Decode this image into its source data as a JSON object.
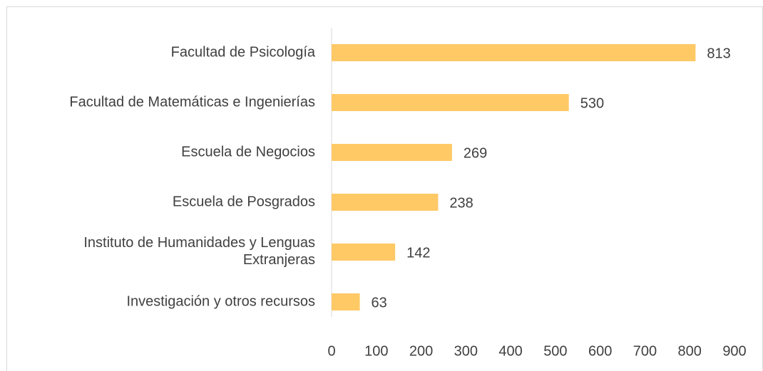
{
  "chart_data": {
    "type": "bar",
    "orientation": "horizontal",
    "categories": [
      "Facultad de Psicología",
      "Facultad de Matemáticas e Ingenierías",
      "Escuela de Negocios",
      "Escuela de Posgrados",
      "Instituto de Humanidades y Lenguas Extranjeras",
      "Investigación y otros recursos"
    ],
    "values": [
      813,
      530,
      269,
      238,
      142,
      63
    ],
    "color": "#ffc966",
    "xlim": [
      0,
      900
    ],
    "xticks": [
      0,
      100,
      200,
      300,
      400,
      500,
      600,
      700,
      800,
      900
    ],
    "grid": false,
    "data_labels": true
  }
}
